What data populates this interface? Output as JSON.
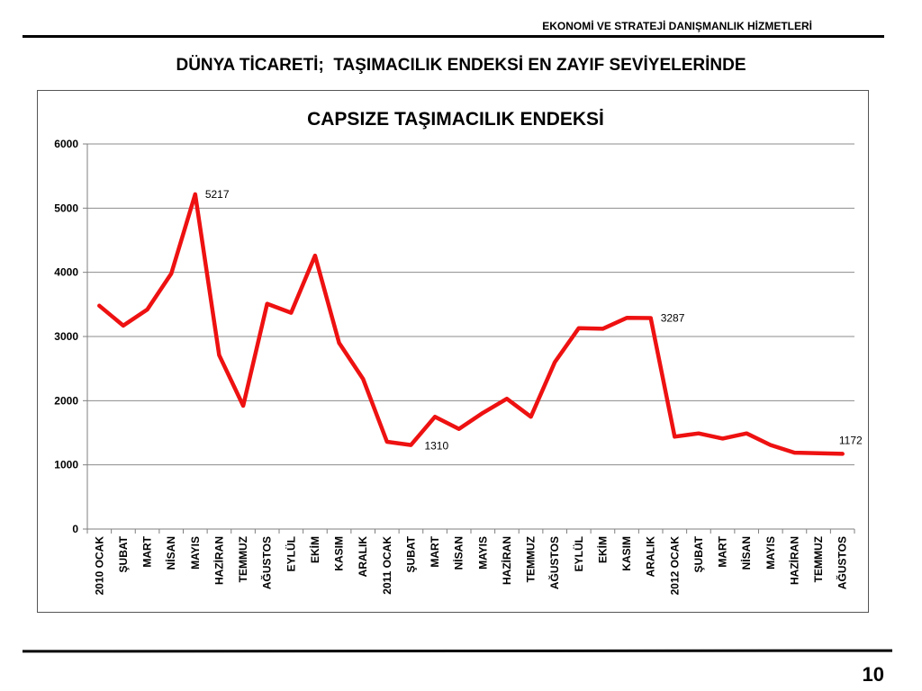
{
  "header": {
    "org_name": "EKONOMİ VE STRATEJİ DANIŞMANLIK HİZMETLERİ",
    "slide_title": "DÜNYA TİCARETİ;  TAŞIMACILIK ENDEKSİ EN ZAYIF SEVİYELERİNDE"
  },
  "footer": {
    "page_number": "10"
  },
  "colors": {
    "line": "#ee1111",
    "grid": "#8c8c8c",
    "axis": "#7f7f7f"
  },
  "chart_data": {
    "type": "line",
    "title": "CAPSIZE TAŞIMACILIK ENDEKSİ",
    "xlabel": "",
    "ylabel": "",
    "ylim": [
      0,
      6000
    ],
    "yticks": [
      0,
      1000,
      2000,
      3000,
      4000,
      5000,
      6000
    ],
    "grid": true,
    "legend": "none",
    "categories": [
      "2010 OCAK",
      "ŞUBAT",
      "MART",
      "NİSAN",
      "MAYIS",
      "HAZİRAN",
      "TEMMUZ",
      "AĞUSTOS",
      "EYLÜL",
      "EKİM",
      "KASIM",
      "ARALIK",
      "2011 OCAK",
      "ŞUBAT",
      "MART",
      "NİSAN",
      "MAYIS",
      "HAZİRAN",
      "TEMMUZ",
      "AĞUSTOS",
      "EYLÜL",
      "EKİM",
      "KASIM",
      "ARALIK",
      "2012 OCAK",
      "ŞUBAT",
      "MART",
      "NİSAN",
      "MAYIS",
      "HAZİRAN",
      "TEMMUZ",
      "AĞUSTOS"
    ],
    "values": [
      3480,
      3170,
      3420,
      3980,
      5217,
      2710,
      1920,
      3510,
      3370,
      4260,
      2900,
      2340,
      1360,
      1310,
      1750,
      1560,
      1810,
      2030,
      1750,
      2600,
      3130,
      3120,
      3290,
      3287,
      1440,
      1490,
      1410,
      1490,
      1310,
      1190,
      1180,
      1172
    ],
    "data_labels": [
      {
        "index": 4,
        "text": "5217"
      },
      {
        "index": 13,
        "text": "1310"
      },
      {
        "index": 23,
        "text": "3287"
      },
      {
        "index": 31,
        "text": "1172"
      }
    ]
  }
}
